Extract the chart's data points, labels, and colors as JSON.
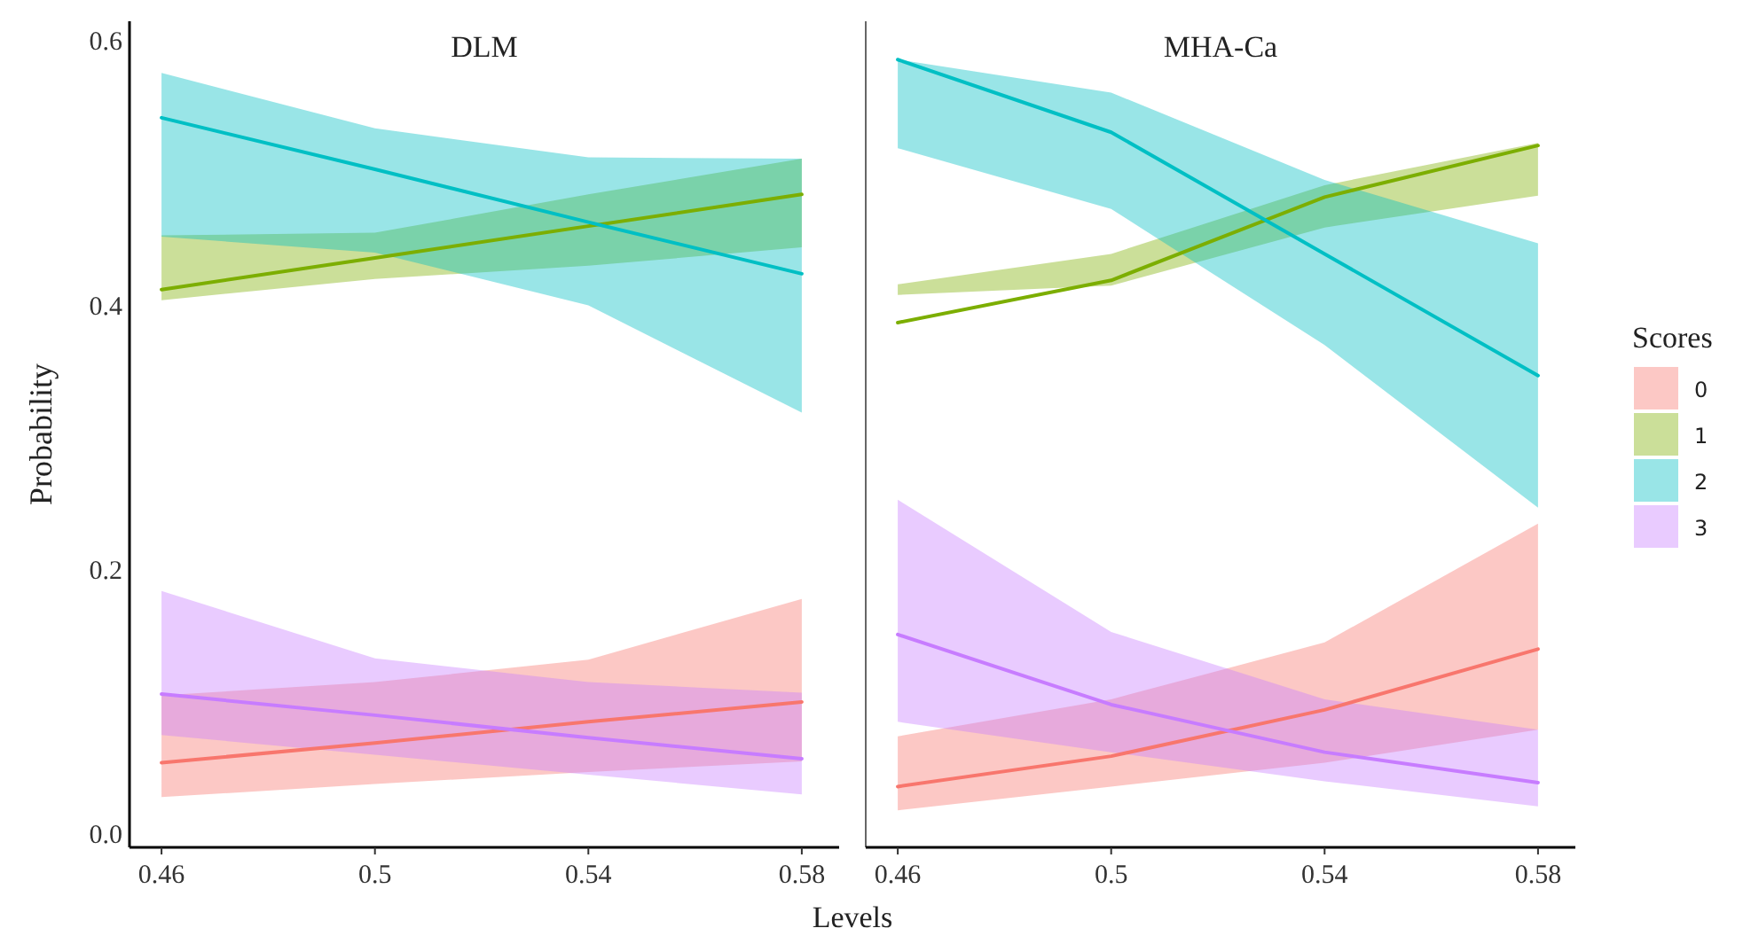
{
  "chart_data": [
    {
      "type": "line",
      "title": "DLM",
      "legend_title": "Scores",
      "legend": "right",
      "xlabel": "Levels",
      "ylabel": "Probability",
      "x": [
        0.46,
        0.5,
        0.54,
        0.58
      ],
      "xlim": [
        0.454,
        0.587
      ],
      "xticks": [
        0.46,
        0.5,
        0.54,
        0.58
      ],
      "ylim": [
        -0.01,
        0.615
      ],
      "yticks": [
        {
          "value": 0,
          "label": "0.0"
        },
        0.2,
        0.4,
        0.6
      ],
      "grid": false,
      "tick_labels": "xy",
      "series": [
        {
          "name": "0",
          "color": "#f8766d",
          "values": [
            0.054,
            0.069,
            0.085,
            0.1
          ],
          "lower": [
            0.028,
            0.038,
            0.047,
            0.055
          ],
          "upper": [
            0.105,
            0.115,
            0.132,
            0.178
          ]
        },
        {
          "name": "1",
          "color": "#7cae00",
          "values": [
            0.412,
            0.436,
            0.46,
            0.484
          ],
          "lower": [
            0.404,
            0.42,
            0.43,
            0.444
          ],
          "upper": [
            0.453,
            0.455,
            0.484,
            0.511
          ]
        },
        {
          "name": "2",
          "color": "#00bfc4",
          "values": [
            0.542,
            0.503,
            0.463,
            0.424
          ],
          "lower": [
            0.452,
            0.44,
            0.4,
            0.319
          ],
          "upper": [
            0.576,
            0.534,
            0.512,
            0.511
          ]
        },
        {
          "name": "3",
          "color": "#c77cff",
          "values": [
            0.106,
            0.09,
            0.073,
            0.057
          ],
          "lower": [
            0.075,
            0.06,
            0.045,
            0.03
          ],
          "upper": [
            0.184,
            0.133,
            0.115,
            0.107
          ]
        }
      ]
    },
    {
      "type": "line",
      "title": "MHA-Ca",
      "x": [
        0.46,
        0.5,
        0.54,
        0.58
      ],
      "xlim": [
        0.454,
        0.587
      ],
      "xticks": [
        0.46,
        0.5,
        0.54,
        0.58
      ],
      "ylim": [
        -0.01,
        0.615
      ],
      "grid": false,
      "tick_labels": "x",
      "series": [
        {
          "color": "#f8766d",
          "values": [
            0.036,
            0.059,
            0.094,
            0.14
          ],
          "lower": [
            0.018,
            0.036,
            0.054,
            0.079
          ],
          "upper": [
            0.074,
            0.102,
            0.145,
            0.235
          ]
        },
        {
          "color": "#7cae00",
          "values": [
            0.387,
            0.419,
            0.482,
            0.521
          ],
          "lower": [
            0.408,
            0.415,
            0.459,
            0.483
          ],
          "upper": [
            0.416,
            0.439,
            0.491,
            0.523
          ]
        },
        {
          "color": "#00bfc4",
          "values": [
            0.586,
            0.531,
            0.439,
            0.347
          ],
          "lower": [
            0.519,
            0.473,
            0.37,
            0.247
          ],
          "upper": [
            0.586,
            0.561,
            0.495,
            0.447
          ]
        },
        {
          "color": "#c77cff",
          "values": [
            0.151,
            0.098,
            0.062,
            0.039
          ],
          "lower": [
            0.085,
            0.062,
            0.04,
            0.021
          ],
          "upper": [
            0.253,
            0.153,
            0.102,
            0.079
          ]
        }
      ]
    }
  ]
}
